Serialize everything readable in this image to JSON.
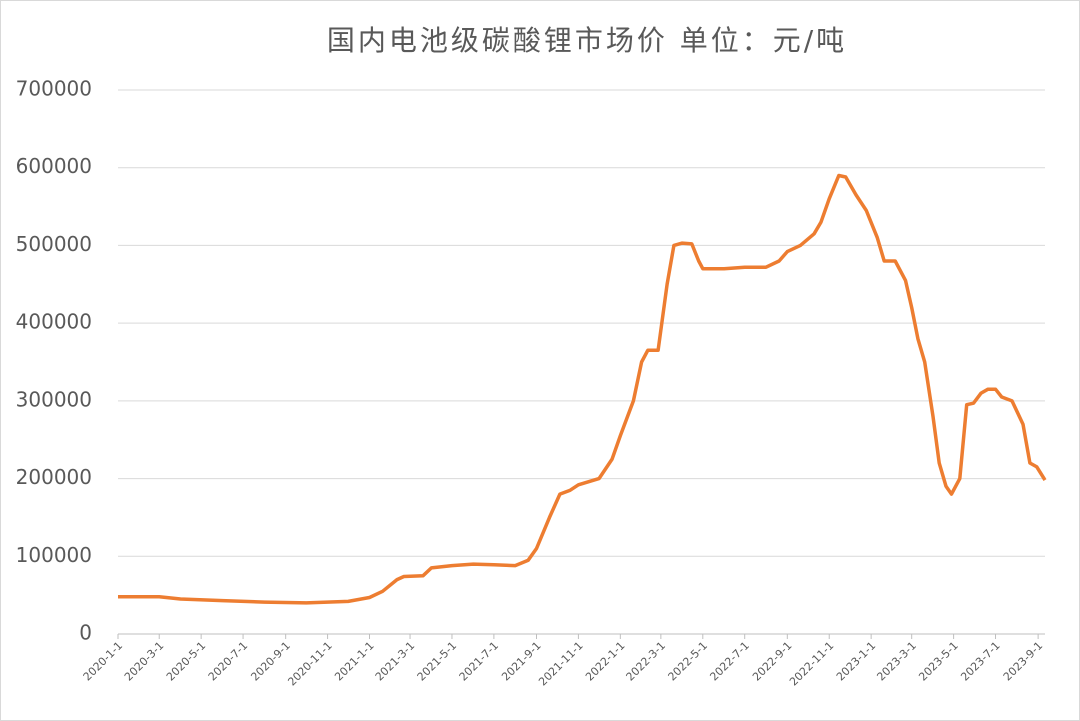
{
  "chart_data": {
    "type": "line",
    "title": "国内电池级碳酸锂市场价 单位：元/吨",
    "x": [
      "2020-1-1",
      "2020-3-1",
      "2020-4-1",
      "2020-6-1",
      "2020-8-1",
      "2020-10-1",
      "2020-12-1",
      "2021-1-1",
      "2021-1-20",
      "2021-2-10",
      "2021-2-20",
      "2021-3-20",
      "2021-4-1",
      "2021-5-1",
      "2021-6-1",
      "2021-7-1",
      "2021-8-1",
      "2021-8-20",
      "2021-9-1",
      "2021-9-20",
      "2021-10-5",
      "2021-10-20",
      "2021-11-1",
      "2021-12-1",
      "2021-12-20",
      "2022-1-1",
      "2022-1-20",
      "2022-2-1",
      "2022-2-10",
      "2022-2-25",
      "2022-3-10",
      "2022-3-20",
      "2022-4-1",
      "2022-4-15",
      "2022-4-25",
      "2022-5-1",
      "2022-6-1",
      "2022-7-1",
      "2022-8-1",
      "2022-8-20",
      "2022-9-1",
      "2022-9-20",
      "2022-10-10",
      "2022-10-20",
      "2022-11-1",
      "2022-11-15",
      "2022-11-25",
      "2022-12-10",
      "2022-12-25",
      "2023-1-10",
      "2023-1-20",
      "2023-2-5",
      "2023-2-20",
      "2023-3-1",
      "2023-3-10",
      "2023-3-20",
      "2023-4-1",
      "2023-4-10",
      "2023-4-20",
      "2023-4-28",
      "2023-5-10",
      "2023-5-20",
      "2023-5-30",
      "2023-6-10",
      "2023-6-20",
      "2023-7-1",
      "2023-7-10",
      "2023-7-25",
      "2023-8-10",
      "2023-8-20",
      "2023-8-30",
      "2023-9-11"
    ],
    "series": [
      {
        "name": "电池级碳酸锂",
        "color": "#ed7d31",
        "values": [
          48000,
          48000,
          45000,
          43000,
          41000,
          40000,
          42000,
          47000,
          55000,
          70000,
          74000,
          75000,
          85000,
          88000,
          90000,
          89000,
          88000,
          95000,
          110000,
          150000,
          180000,
          185000,
          192000,
          200000,
          225000,
          255000,
          300000,
          350000,
          365000,
          365000,
          450000,
          500000,
          503000,
          502000,
          480000,
          470000,
          470000,
          472000,
          472000,
          480000,
          492000,
          500000,
          515000,
          530000,
          560000,
          590000,
          588000,
          565000,
          545000,
          510000,
          480000,
          480000,
          455000,
          420000,
          380000,
          350000,
          280000,
          220000,
          190000,
          180000,
          200000,
          295000,
          297000,
          310000,
          315000,
          315000,
          305000,
          300000,
          270000,
          220000,
          215000,
          198000
        ]
      }
    ],
    "xlim": [
      "2020-1-1",
      "2023-9-11"
    ],
    "xticks": [
      "2020-1-1",
      "2020-3-1",
      "2020-5-1",
      "2020-7-1",
      "2020-9-1",
      "2020-11-1",
      "2021-1-1",
      "2021-3-1",
      "2021-5-1",
      "2021-7-1",
      "2021-9-1",
      "2021-11-1",
      "2022-1-1",
      "2022-3-1",
      "2022-5-1",
      "2022-7-1",
      "2022-9-1",
      "2022-11-1",
      "2023-1-1",
      "2023-3-1",
      "2023-5-1",
      "2023-7-1",
      "2023-9-1"
    ],
    "ylim": [
      0,
      700000
    ],
    "yticks": [
      0,
      100000,
      200000,
      300000,
      400000,
      500000,
      600000,
      700000
    ],
    "grid": true
  }
}
